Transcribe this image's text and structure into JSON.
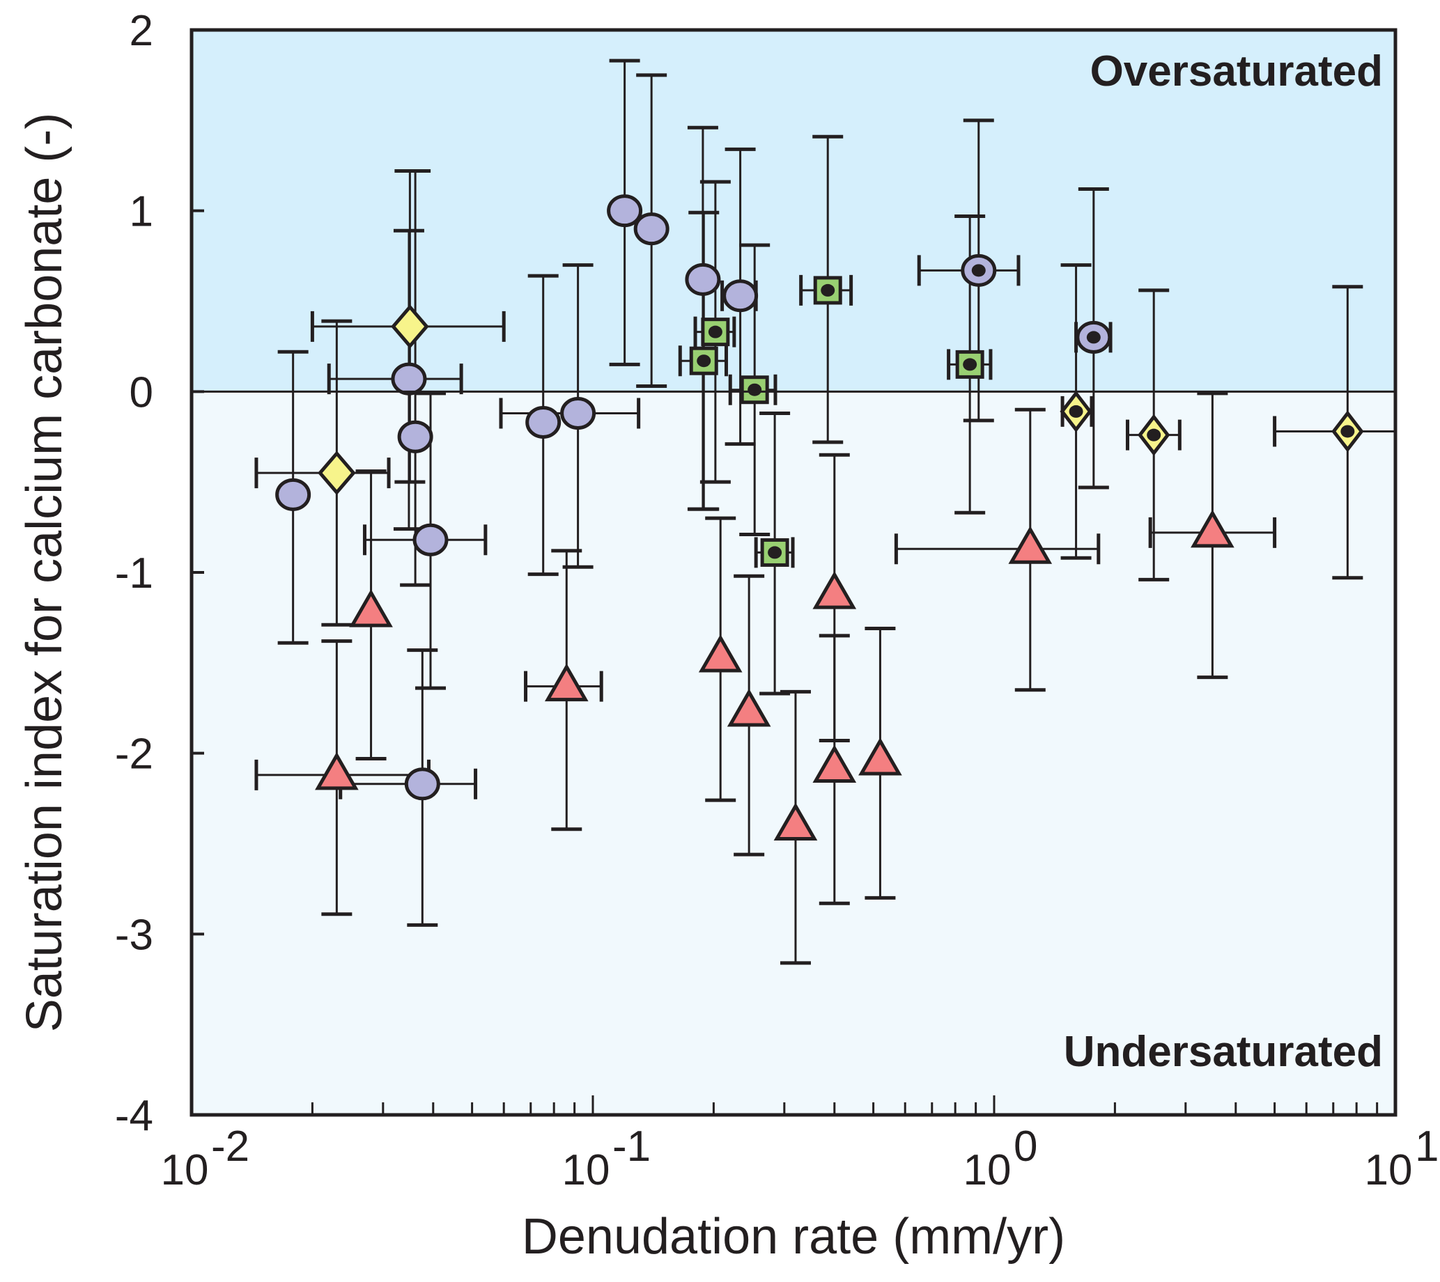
{
  "chart_data": {
    "type": "scatter",
    "title": "",
    "xlabel": "Denudation rate (mm/yr)",
    "ylabel": "Saturation index for calcium carbonate (-)",
    "xscale": "log",
    "xlim": [
      0.01,
      10
    ],
    "ylim": [
      -4,
      2
    ],
    "xticks": [
      {
        "value": 0.01,
        "base": "10",
        "exp": "-2"
      },
      {
        "value": 0.1,
        "base": "10",
        "exp": "-1"
      },
      {
        "value": 1,
        "base": "10",
        "exp": "0"
      },
      {
        "value": 10,
        "base": "10",
        "exp": "1"
      }
    ],
    "yticks": [
      "2",
      "1",
      "0",
      "-1",
      "-2",
      "-3",
      "-4"
    ],
    "ytick_values": [
      2,
      1,
      0,
      -1,
      -2,
      -3,
      -4
    ],
    "reference_line_y": 0,
    "regions": [
      {
        "label": "Oversaturated",
        "from": 0,
        "to": 2,
        "color": "#d5effc"
      },
      {
        "label": "Undersaturated",
        "from": -4,
        "to": 0,
        "color": "#f1f9fd"
      }
    ],
    "grid": false,
    "legend": "none",
    "series": [
      {
        "name": "circle",
        "marker": "circle",
        "color": "#b3b3dc",
        "dot": false,
        "points": [
          {
            "x": 0.0179,
            "y": -0.57,
            "ylo": -1.39,
            "yhi": 0.22
          },
          {
            "x": 0.0348,
            "y": 0.07,
            "ylo": -0.76,
            "yhi": 0.89,
            "xlo": 0.022,
            "xhi": 0.047
          },
          {
            "x": 0.0361,
            "y": -0.25,
            "ylo": -1.07,
            "yhi": 1.22
          },
          {
            "x": 0.0394,
            "y": -0.82,
            "ylo": -1.64,
            "yhi": -0.01,
            "xlo": 0.027,
            "xhi": 0.054
          },
          {
            "x": 0.0376,
            "y": -2.17,
            "ylo": -2.95,
            "yhi": -1.43,
            "xlo": 0.0235,
            "xhi": 0.051
          },
          {
            "x": 0.0752,
            "y": -0.17,
            "ylo": -1.01,
            "yhi": 0.64
          },
          {
            "x": 0.0918,
            "y": -0.12,
            "ylo": -0.97,
            "yhi": 0.7,
            "xlo": 0.059,
            "xhi": 0.13
          },
          {
            "x": 0.12,
            "y": 1.0,
            "ylo": 0.15,
            "yhi": 1.83
          },
          {
            "x": 0.14,
            "y": 0.9,
            "ylo": 0.03,
            "yhi": 1.75
          },
          {
            "x": 0.188,
            "y": 0.62,
            "ylo": -0.65,
            "yhi": 1.46
          },
          {
            "x": 0.233,
            "y": 0.53,
            "ylo": -0.29,
            "yhi": 1.34,
            "xlo": 0.21,
            "xhi": 0.255
          }
        ]
      },
      {
        "name": "circle-dot",
        "marker": "circle",
        "color": "#b3b3dc",
        "dot": true,
        "points": [
          {
            "x": 0.915,
            "y": 0.67,
            "ylo": -0.16,
            "yhi": 1.5,
            "xlo": 0.65,
            "xhi": 1.15
          },
          {
            "x": 1.77,
            "y": 0.3,
            "ylo": -0.53,
            "yhi": 1.12,
            "xlo": 1.6,
            "xhi": 1.95
          }
        ]
      },
      {
        "name": "square-dot",
        "marker": "square",
        "color": "#99d072",
        "dot": true,
        "points": [
          {
            "x": 0.189,
            "y": 0.17,
            "ylo": -0.65,
            "yhi": 0.99,
            "xlo": 0.165,
            "xhi": 0.215
          },
          {
            "x": 0.202,
            "y": 0.33,
            "ylo": -0.5,
            "yhi": 1.16,
            "xlo": 0.18,
            "xhi": 0.225
          },
          {
            "x": 0.253,
            "y": 0.01,
            "ylo": -0.79,
            "yhi": 0.81,
            "xlo": 0.22,
            "xhi": 0.285
          },
          {
            "x": 0.385,
            "y": 0.56,
            "ylo": -0.28,
            "yhi": 1.41,
            "xlo": 0.33,
            "xhi": 0.44
          },
          {
            "x": 0.87,
            "y": 0.15,
            "ylo": -0.67,
            "yhi": 0.97,
            "xlo": 0.77,
            "xhi": 0.98
          },
          {
            "x": 0.284,
            "y": -0.89,
            "ylo": -1.67,
            "yhi": -0.12,
            "xlo": 0.255,
            "xhi": 0.315
          }
        ]
      },
      {
        "name": "diamond",
        "marker": "diamond",
        "color": "#f7f48b",
        "dot": false,
        "points": [
          {
            "x": 0.035,
            "y": 0.36,
            "ylo": -0.5,
            "yhi": 1.22,
            "xlo": 0.02,
            "xhi": 0.06
          },
          {
            "x": 0.023,
            "y": -0.45,
            "ylo": -1.29,
            "yhi": 0.39,
            "xlo": 0.0145,
            "xhi": 0.031
          }
        ]
      },
      {
        "name": "diamond-dot",
        "marker": "diamond",
        "color": "#f7f48b",
        "dot": true,
        "points": [
          {
            "x": 1.6,
            "y": -0.11,
            "ylo": -0.92,
            "yhi": 0.7,
            "xlo": 1.48,
            "xhi": 1.75
          },
          {
            "x": 2.5,
            "y": -0.24,
            "ylo": -1.04,
            "yhi": 0.56,
            "xlo": 2.15,
            "xhi": 2.9
          },
          {
            "x": 7.6,
            "y": -0.22,
            "ylo": -1.03,
            "yhi": 0.58,
            "xlo": 5.0,
            "xhi": 10.0
          }
        ]
      },
      {
        "name": "triangle",
        "marker": "triangle",
        "color": "#f47f81",
        "dot": false,
        "points": [
          {
            "x": 0.028,
            "y": -1.22,
            "ylo": -2.03,
            "yhi": -0.44
          },
          {
            "x": 0.023,
            "y": -2.12,
            "ylo": -2.89,
            "yhi": -1.38,
            "xlo": 0.0145,
            "xhi": 0.039
          },
          {
            "x": 0.086,
            "y": -1.63,
            "ylo": -2.42,
            "yhi": -0.88,
            "xlo": 0.068,
            "xhi": 0.105
          },
          {
            "x": 0.208,
            "y": -1.47,
            "ylo": -2.26,
            "yhi": -0.7
          },
          {
            "x": 0.245,
            "y": -1.77,
            "ylo": -2.56,
            "yhi": -1.02
          },
          {
            "x": 0.32,
            "y": -2.4,
            "ylo": -3.16,
            "yhi": -1.66
          },
          {
            "x": 0.4,
            "y": -1.12,
            "ylo": -1.93,
            "yhi": -0.35
          },
          {
            "x": 0.4,
            "y": -2.08,
            "ylo": -2.83,
            "yhi": -1.35
          },
          {
            "x": 0.52,
            "y": -2.04,
            "ylo": -2.8,
            "yhi": -1.31
          },
          {
            "x": 1.23,
            "y": -0.87,
            "ylo": -1.65,
            "yhi": -0.1,
            "xlo": 0.57,
            "xhi": 1.82
          },
          {
            "x": 3.5,
            "y": -0.78,
            "ylo": -1.58,
            "yhi": -0.01,
            "xlo": 2.45,
            "xhi": 5.0
          }
        ]
      }
    ]
  }
}
